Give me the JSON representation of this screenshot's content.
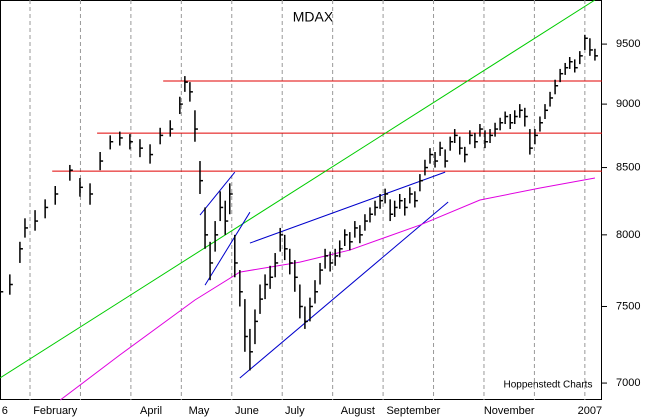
{
  "chart_data": {
    "type": "ohlc",
    "title": "MDAX",
    "annotation": "Hoppenstedt Charts",
    "log_y": true,
    "bar_color": "#000000",
    "grid_color": "#999999",
    "xlim": [
      0.405,
      12.34
    ],
    "ylim": [
      6894,
      9885
    ],
    "yticks": [
      7000,
      7500,
      8000,
      8500,
      9000,
      9500
    ],
    "xgrid": [
      1,
      2,
      3,
      4,
      5,
      6,
      7,
      8,
      9,
      10,
      11,
      12
    ],
    "xticks": [
      {
        "value": 0.5,
        "label": "6"
      },
      {
        "value": 1.5,
        "label": "February"
      },
      {
        "value": 3.4,
        "label": "April"
      },
      {
        "value": 4.35,
        "label": "May"
      },
      {
        "value": 5.3,
        "label": "June"
      },
      {
        "value": 6.25,
        "label": "July"
      },
      {
        "value": 7.5,
        "label": "August"
      },
      {
        "value": 8.6,
        "label": "September"
      },
      {
        "value": 10.5,
        "label": "November"
      },
      {
        "value": 12.1,
        "label": "2007"
      }
    ],
    "x": [
      0.41,
      0.6,
      0.8,
      0.9,
      1.1,
      1.3,
      1.5,
      1.79,
      1.99,
      2.19,
      2.39,
      2.59,
      2.78,
      2.98,
      3.18,
      3.38,
      3.58,
      3.78,
      3.97,
      4.07,
      4.17,
      4.27,
      4.37,
      4.47,
      4.57,
      4.67,
      4.77,
      4.87,
      4.96,
      5.06,
      5.16,
      5.26,
      5.36,
      5.46,
      5.56,
      5.66,
      5.76,
      5.86,
      5.96,
      6.05,
      6.15,
      6.25,
      6.35,
      6.45,
      6.55,
      6.65,
      6.75,
      6.85,
      6.95,
      7.05,
      7.14,
      7.24,
      7.34,
      7.44,
      7.54,
      7.64,
      7.74,
      7.84,
      7.94,
      8.04,
      8.14,
      8.23,
      8.33,
      8.43,
      8.53,
      8.63,
      8.73,
      8.83,
      8.93,
      9.03,
      9.13,
      9.23,
      9.33,
      9.42,
      9.52,
      9.62,
      9.72,
      9.82,
      9.92,
      10.02,
      10.12,
      10.22,
      10.32,
      10.42,
      10.52,
      10.61,
      10.71,
      10.81,
      10.91,
      11.01,
      11.11,
      11.21,
      11.31,
      11.41,
      11.51,
      11.61,
      11.7,
      11.8,
      11.9,
      12.0,
      12.1,
      12.2
    ],
    "high": [
      7700,
      7720,
      7950,
      8120,
      8180,
      8260,
      8360,
      8520,
      8420,
      8380,
      8620,
      8750,
      8780,
      8760,
      8720,
      8680,
      8810,
      8870,
      9060,
      9230,
      9180,
      8950,
      8550,
      8200,
      7950,
      8100,
      8320,
      8250,
      8380,
      8000,
      7750,
      7550,
      7350,
      7480,
      7650,
      7720,
      7780,
      7870,
      8050,
      8000,
      7900,
      7820,
      7650,
      7500,
      7560,
      7680,
      7800,
      7900,
      7880,
      7900,
      7960,
      8040,
      8020,
      8100,
      8070,
      8150,
      8200,
      8250,
      8300,
      8340,
      8260,
      8250,
      8300,
      8270,
      8350,
      8320,
      8450,
      8560,
      8650,
      8620,
      8700,
      8640,
      8740,
      8800,
      8740,
      8660,
      8790,
      8770,
      8840,
      8790,
      8800,
      8850,
      8890,
      8940,
      8920,
      8950,
      9000,
      8970,
      8800,
      8800,
      8900,
      9000,
      9100,
      9200,
      9290,
      9340,
      9390,
      9370,
      9440,
      9580,
      9550,
      9460
    ],
    "low": [
      7550,
      7580,
      7800,
      7980,
      8030,
      8120,
      8220,
      8400,
      8280,
      8220,
      8480,
      8640,
      8670,
      8640,
      8580,
      8530,
      8680,
      8740,
      8920,
      9100,
      9020,
      8700,
      8300,
      7900,
      7680,
      7880,
      8100,
      8000,
      8150,
      7700,
      7500,
      7200,
      7080,
      7250,
      7450,
      7550,
      7620,
      7700,
      7880,
      7820,
      7720,
      7600,
      7420,
      7350,
      7400,
      7520,
      7650,
      7760,
      7740,
      7780,
      7840,
      7920,
      7890,
      7980,
      7940,
      8030,
      8090,
      8140,
      8190,
      8230,
      8100,
      8130,
      8190,
      8140,
      8230,
      8200,
      8320,
      8440,
      8530,
      8500,
      8590,
      8500,
      8630,
      8690,
      8600,
      8540,
      8680,
      8650,
      8740,
      8650,
      8690,
      8740,
      8790,
      8840,
      8800,
      8840,
      8890,
      8820,
      8600,
      8680,
      8780,
      8880,
      8980,
      9080,
      9180,
      9240,
      9290,
      9260,
      9330,
      9450,
      9400,
      9360
    ],
    "close": [
      7600,
      7650,
      7900,
      8050,
      8100,
      8200,
      8300,
      8480,
      8350,
      8300,
      8550,
      8700,
      8730,
      8700,
      8650,
      8600,
      8750,
      8800,
      9000,
      9180,
      9100,
      8800,
      8400,
      8000,
      7800,
      8000,
      8200,
      8100,
      8300,
      7800,
      7600,
      7300,
      7200,
      7400,
      7550,
      7650,
      7700,
      7800,
      8000,
      7900,
      7800,
      7700,
      7500,
      7400,
      7500,
      7600,
      7750,
      7850,
      7800,
      7850,
      7900,
      8000,
      7950,
      8050,
      8000,
      8100,
      8150,
      8200,
      8250,
      8300,
      8150,
      8200,
      8250,
      8200,
      8300,
      8250,
      8400,
      8500,
      8600,
      8550,
      8650,
      8550,
      8700,
      8750,
      8650,
      8600,
      8750,
      8700,
      8800,
      8700,
      8750,
      8800,
      8850,
      8900,
      8850,
      8900,
      8950,
      8900,
      8650,
      8750,
      8850,
      8950,
      9050,
      9150,
      9250,
      9300,
      9350,
      9300,
      9400,
      9550,
      9450,
      9400
    ],
    "lines": [
      {
        "color": "#e00000",
        "x": [
          3.64,
          12.34
        ],
        "y": [
          9189,
          9189
        ]
      },
      {
        "color": "#e00000",
        "x": [
          2.33,
          12.34
        ],
        "y": [
          8768,
          8768
        ]
      },
      {
        "color": "#e00000",
        "x": [
          1.44,
          12.34
        ],
        "y": [
          8473,
          8473
        ]
      },
      {
        "color": "#00cc00",
        "x": [
          0.405,
          12.2
        ],
        "y": [
          7032,
          9885
        ]
      },
      {
        "color": "#0000cc",
        "x": [
          4.37,
          5.06
        ],
        "y": [
          8144,
          8465
        ]
      },
      {
        "color": "#0000cc",
        "x": [
          4.47,
          5.36
        ],
        "y": [
          7646,
          8165
        ]
      },
      {
        "color": "#0000cc",
        "x": [
          5.36,
          9.23
        ],
        "y": [
          7941,
          8465
        ]
      },
      {
        "color": "#0000cc",
        "x": [
          5.16,
          9.29
        ],
        "y": [
          7032,
          8240
        ]
      },
      {
        "color": "#e000e0",
        "x": [
          1.6,
          2.78,
          4.27,
          5.16,
          6.35,
          7.34,
          8.73,
          9.92,
          11.1,
          12.2
        ],
        "y": [
          6894,
          7179,
          7544,
          7736,
          7806,
          7891,
          8071,
          8255,
          8344,
          8420
        ]
      }
    ]
  }
}
